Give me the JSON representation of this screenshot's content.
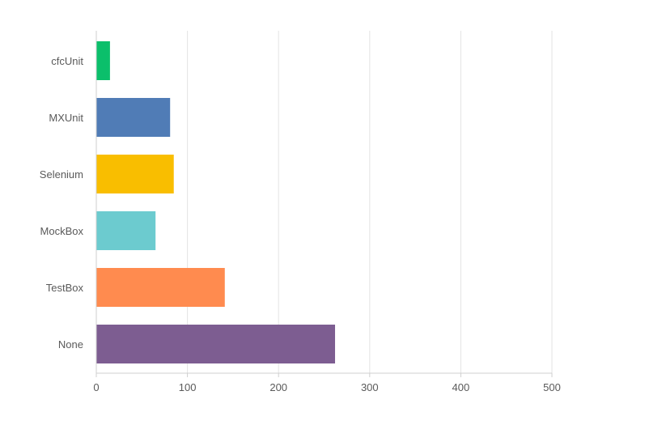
{
  "chart_data": {
    "type": "bar",
    "orientation": "horizontal",
    "categories": [
      "cfcUnit",
      "MXUnit",
      "Selenium",
      "MockBox",
      "TestBox",
      "None"
    ],
    "values": [
      15,
      81,
      85,
      65,
      141,
      262
    ],
    "colors": [
      "#0bbf6b",
      "#507cb6",
      "#f9be00",
      "#6ccbcf",
      "#ff8b4f",
      "#7d5d91"
    ],
    "xlim": [
      0,
      500
    ],
    "xticks": [
      0,
      100,
      200,
      300,
      400,
      500
    ],
    "grid": "vertical",
    "title": "",
    "xlabel": "",
    "ylabel": ""
  }
}
